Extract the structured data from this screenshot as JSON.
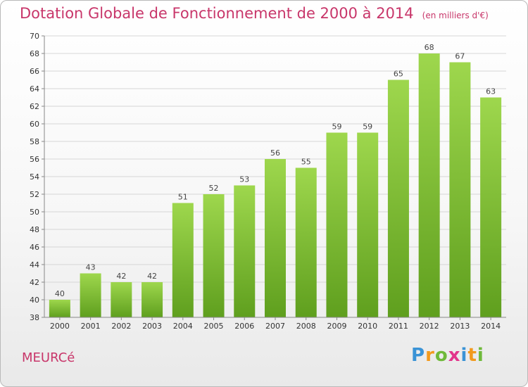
{
  "title": "Dotation Globale de Fonctionnement de 2000 à 2014",
  "unit": "(en milliers d'€)",
  "commune": "MEURCé",
  "logo": {
    "letters": [
      "P",
      "r",
      "o",
      "x",
      "i",
      "t",
      "i"
    ],
    "colors": [
      "#3a93d6",
      "#f29a1d",
      "#6fb93a",
      "#e2358b",
      "#3a93d6",
      "#f29a1d",
      "#6fb93a"
    ]
  },
  "colors": {
    "bar_top": "#9ed74d",
    "bar_bottom": "#5f9f1e",
    "title": "#c8366a"
  },
  "chart_data": {
    "type": "bar",
    "categories": [
      "2000",
      "2001",
      "2002",
      "2003",
      "2004",
      "2005",
      "2006",
      "2007",
      "2008",
      "2009",
      "2010",
      "2011",
      "2012",
      "2013",
      "2014"
    ],
    "values": [
      40,
      43,
      42,
      42,
      51,
      52,
      53,
      56,
      55,
      59,
      59,
      65,
      68,
      67,
      63
    ],
    "yticks": [
      38,
      40,
      42,
      44,
      46,
      48,
      50,
      52,
      54,
      56,
      58,
      60,
      62,
      64,
      66,
      68,
      70
    ],
    "ylim": [
      38,
      70
    ],
    "grid": true
  }
}
